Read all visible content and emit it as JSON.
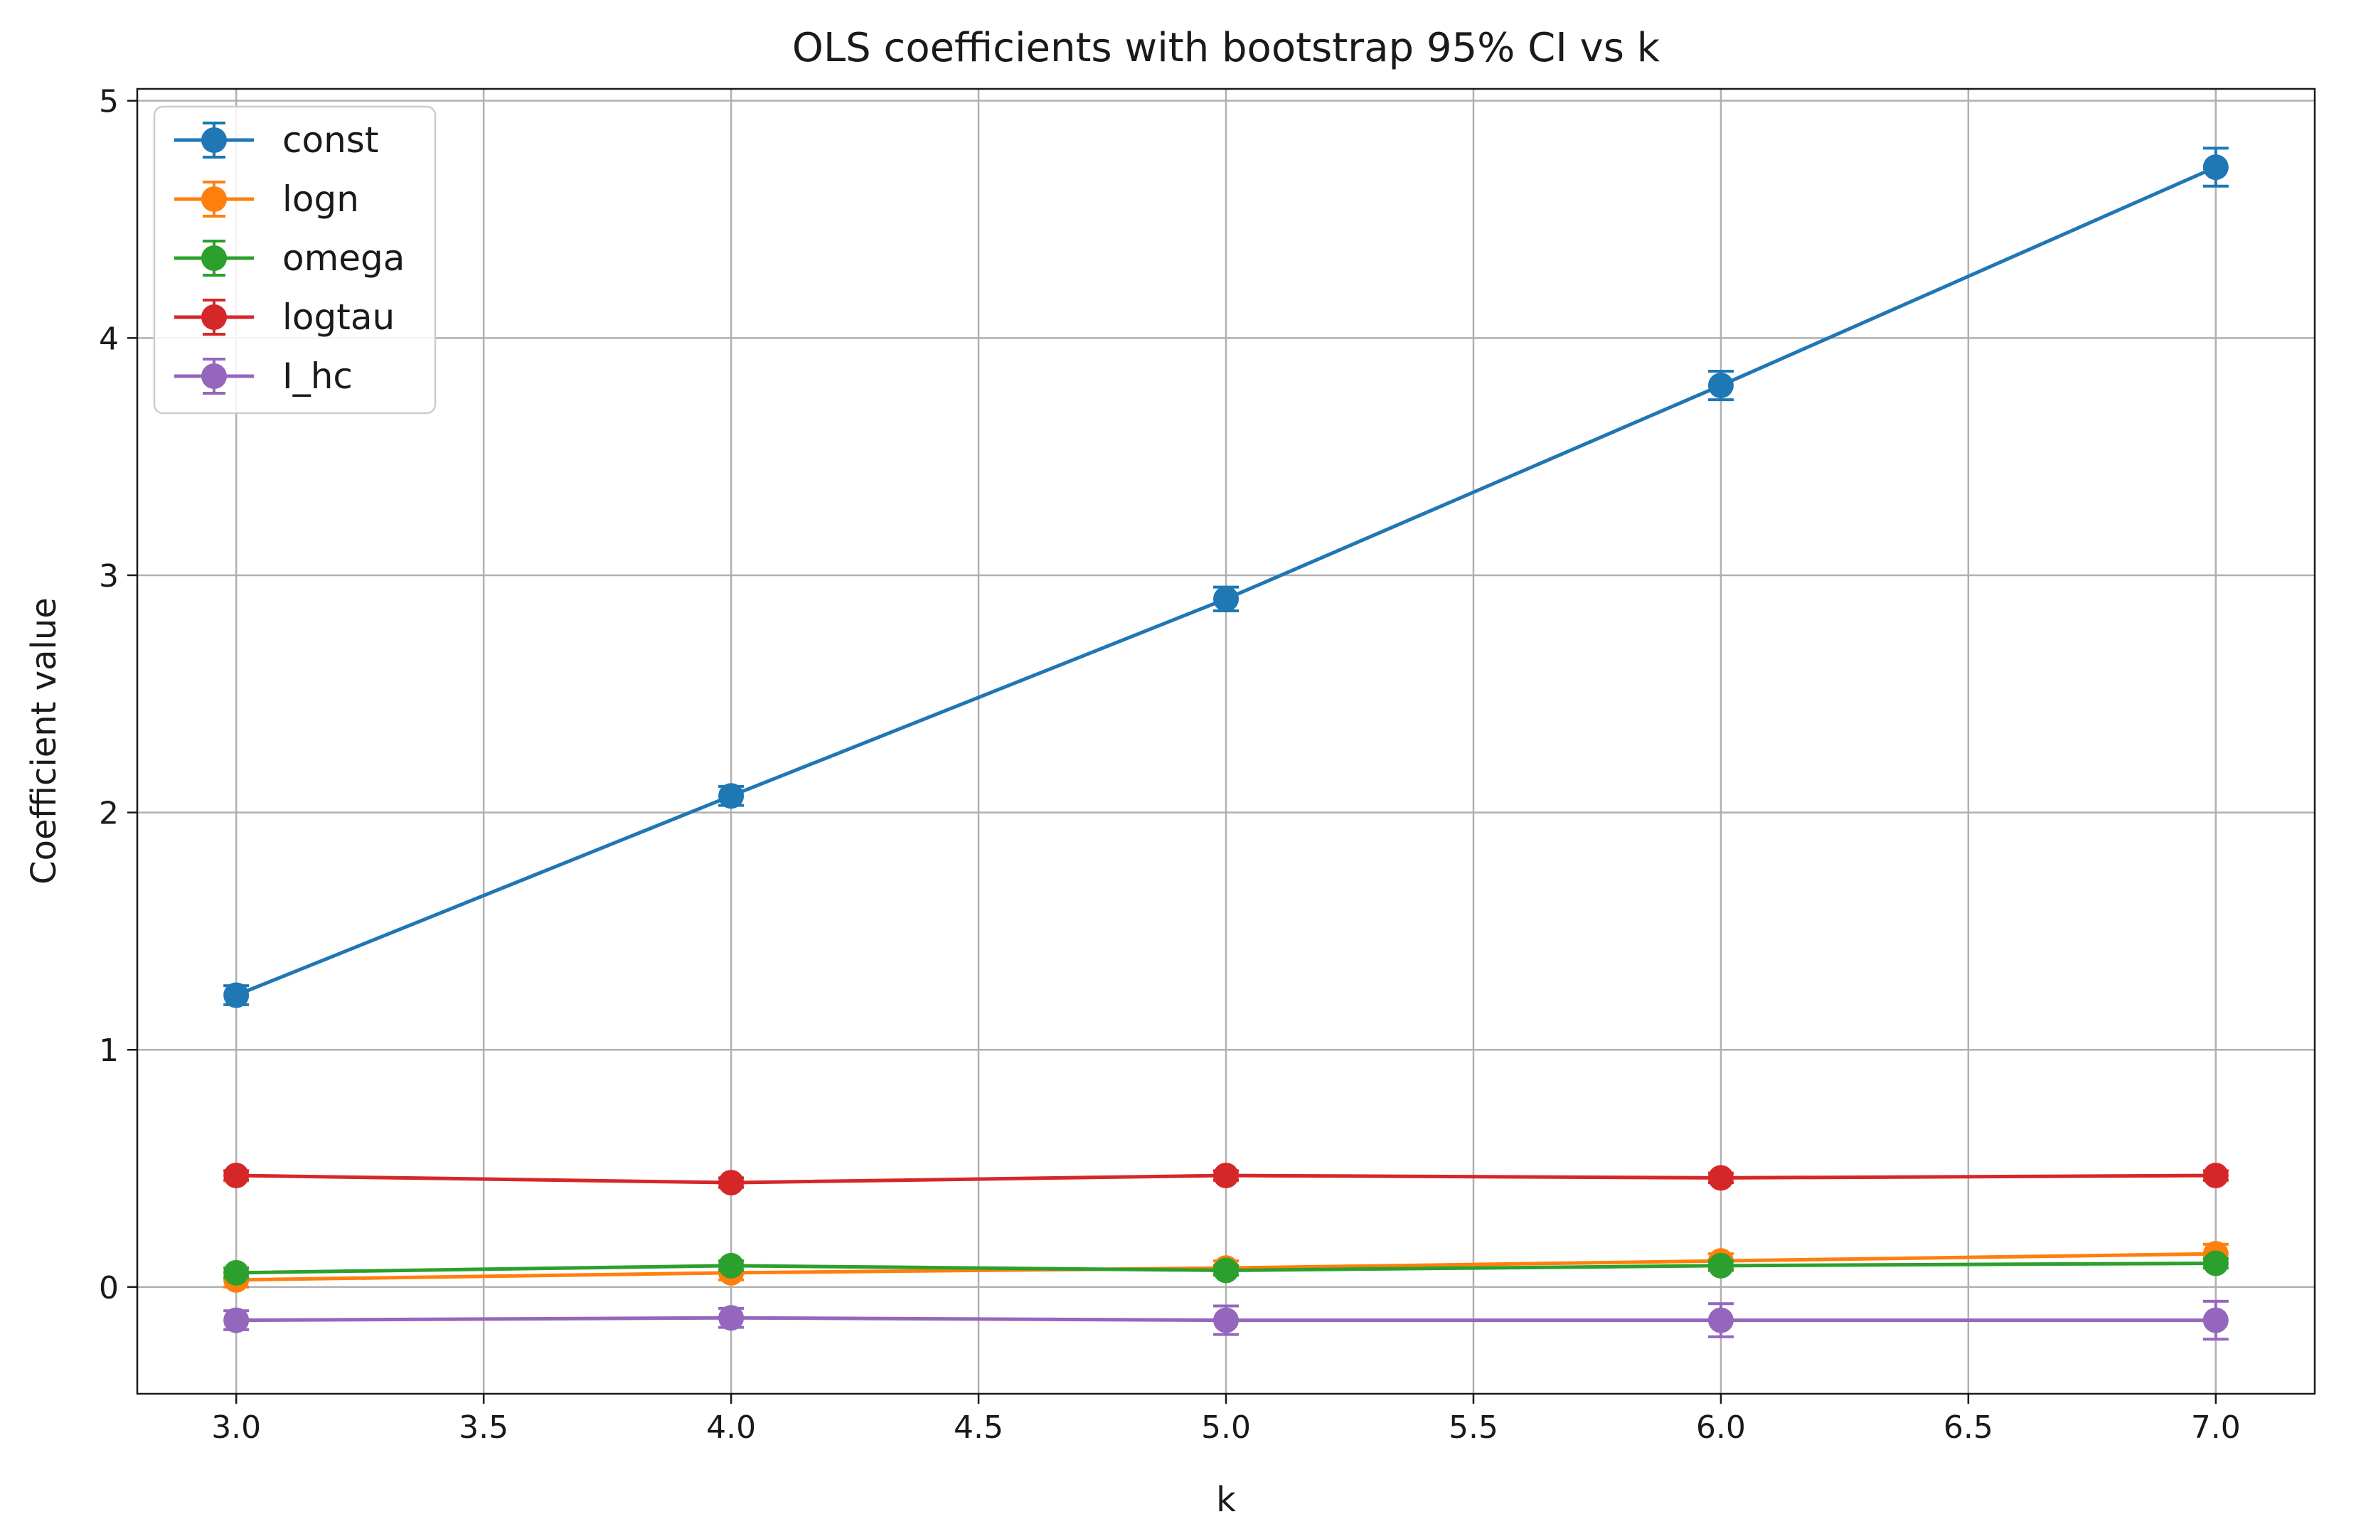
{
  "chart_data": {
    "type": "line",
    "title": "OLS coefficients with bootstrap 95% CI vs k",
    "xlabel": "k",
    "ylabel": "Coefficient value",
    "xlim": [
      2.8,
      7.2
    ],
    "ylim": [
      -0.45,
      5.05
    ],
    "xticks": [
      3.0,
      3.5,
      4.0,
      4.5,
      5.0,
      5.5,
      6.0,
      6.5,
      7.0
    ],
    "xtick_labels": [
      "3.0",
      "3.5",
      "4.0",
      "4.5",
      "5.0",
      "5.5",
      "6.0",
      "6.5",
      "7.0"
    ],
    "yticks": [
      0,
      1,
      2,
      3,
      4,
      5
    ],
    "ytick_labels": [
      "0",
      "1",
      "2",
      "3",
      "4",
      "5"
    ],
    "grid": true,
    "legend_position": "top-left",
    "x": [
      3,
      4,
      5,
      6,
      7
    ],
    "series": [
      {
        "name": "const",
        "color": "#1f77b4",
        "values": [
          1.23,
          2.07,
          2.9,
          3.8,
          4.72
        ],
        "ci_low": [
          1.19,
          2.03,
          2.85,
          3.74,
          4.64
        ],
        "ci_high": [
          1.27,
          2.11,
          2.95,
          3.86,
          4.8
        ]
      },
      {
        "name": "logn",
        "color": "#ff7f0e",
        "values": [
          0.03,
          0.06,
          0.08,
          0.11,
          0.14
        ],
        "ci_low": [
          0.0,
          0.03,
          0.05,
          0.08,
          0.1
        ],
        "ci_high": [
          0.06,
          0.09,
          0.11,
          0.14,
          0.18
        ]
      },
      {
        "name": "omega",
        "color": "#2ca02c",
        "values": [
          0.06,
          0.09,
          0.07,
          0.09,
          0.1
        ],
        "ci_low": [
          0.04,
          0.07,
          0.05,
          0.07,
          0.08
        ],
        "ci_high": [
          0.08,
          0.11,
          0.09,
          0.11,
          0.12
        ]
      },
      {
        "name": "logtau",
        "color": "#d62728",
        "values": [
          0.47,
          0.44,
          0.47,
          0.46,
          0.47
        ],
        "ci_low": [
          0.45,
          0.42,
          0.45,
          0.44,
          0.45
        ],
        "ci_high": [
          0.49,
          0.46,
          0.49,
          0.48,
          0.49
        ]
      },
      {
        "name": "I_hc",
        "color": "#9467bd",
        "values": [
          -0.14,
          -0.13,
          -0.14,
          -0.14,
          -0.14
        ],
        "ci_low": [
          -0.18,
          -0.17,
          -0.2,
          -0.21,
          -0.22
        ],
        "ci_high": [
          -0.1,
          -0.09,
          -0.08,
          -0.07,
          -0.06
        ]
      }
    ]
  }
}
